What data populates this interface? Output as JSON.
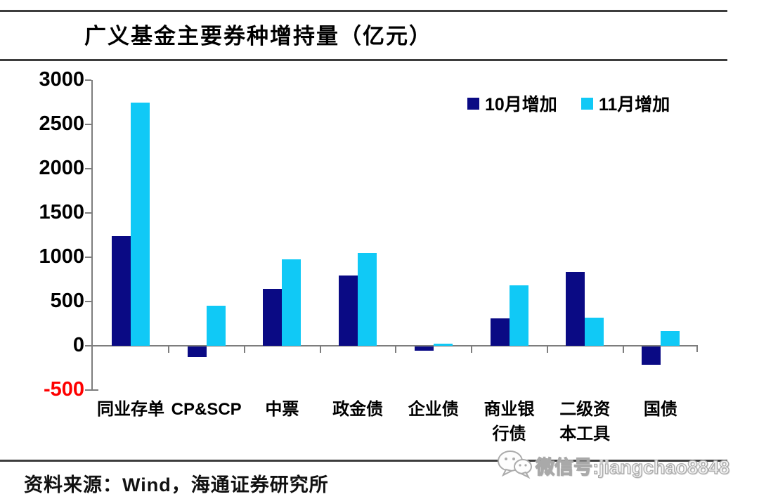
{
  "title": "广义基金主要券种增持量（亿元）",
  "legend": [
    {
      "label": "10月增加",
      "color": "#0a0a84"
    },
    {
      "label": "11月增加",
      "color": "#10c9f6"
    }
  ],
  "chart_data": {
    "type": "bar",
    "title": "广义基金主要券种增持量（亿元）",
    "categories": [
      "同业存单",
      "CP&SCP",
      "中票",
      "政金债",
      "企业债",
      "商业银行债",
      "二级资本工具",
      "国债"
    ],
    "category_display": [
      [
        "同业存单"
      ],
      [
        "CP&SCP"
      ],
      [
        "中票"
      ],
      [
        "政金债"
      ],
      [
        "企业债"
      ],
      [
        "商业银",
        "行债"
      ],
      [
        "二级资",
        "本工具"
      ],
      [
        "国债"
      ]
    ],
    "series": [
      {
        "name": "10月增加",
        "color": "#0a0a84",
        "values": [
          1240,
          -120,
          640,
          790,
          -50,
          310,
          830,
          -210
        ]
      },
      {
        "name": "11月增加",
        "color": "#10c9f6",
        "values": [
          2750,
          450,
          980,
          1050,
          20,
          680,
          320,
          170
        ]
      }
    ],
    "ylabel": "亿元",
    "ylim": [
      -500,
      3000
    ],
    "yticks": [
      3000,
      2500,
      2000,
      1500,
      1000,
      500,
      0,
      -500
    ],
    "ytick_color": "#000000",
    "ytick_negative_color": "#fe0000",
    "grid": false,
    "legend_position": "top-right"
  },
  "footer": {
    "source_label": "资料来源：Wind，海通证券研究所"
  },
  "watermark": {
    "text": "微信号:jiangchao8848",
    "icon": "wechat-icon"
  }
}
